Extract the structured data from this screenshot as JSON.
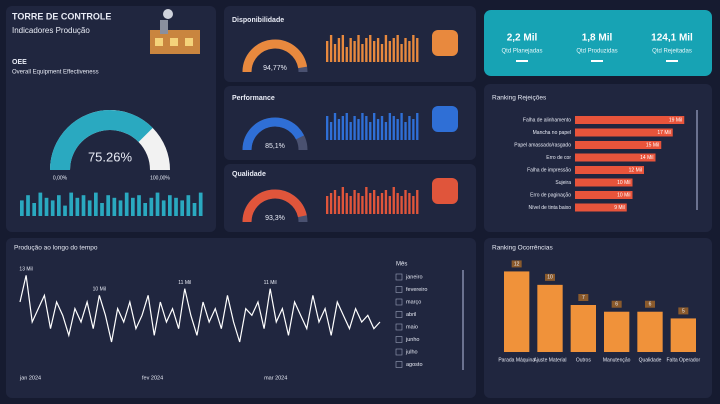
{
  "header": {
    "title": "TORRE DE CONTROLE",
    "subtitle": "Indicadores Produção"
  },
  "kpis": [
    {
      "value_label": "2,2 Mil",
      "label": "Qtd Planejadas"
    },
    {
      "value_label": "1,8 Mil",
      "label": "Qtd Produzidas"
    },
    {
      "value_label": "124,1 Mil",
      "label": "Qtd Rejeitadas"
    }
  ],
  "gauges": [
    {
      "title": "OEE",
      "subtitle": "Overall Equipment Effectiveness",
      "value": 75.26,
      "value_label": "75.26%",
      "lim": [
        0,
        100
      ],
      "min_label": "0,00%",
      "max_label": "100,00%",
      "color": "#2aa9c0",
      "track": "#f2f2f2",
      "spark": [
        6,
        8,
        5,
        9,
        7,
        6,
        8,
        4,
        9,
        7,
        8,
        6,
        9,
        5,
        8,
        7,
        6,
        9,
        7,
        8,
        5,
        7,
        9,
        6,
        8,
        7,
        6,
        8,
        5,
        9
      ],
      "spark_lim": [
        0,
        10
      ]
    },
    {
      "title": "Disponibilidade",
      "value": 94.77,
      "value_label": "94,77%",
      "lim": [
        0,
        100
      ],
      "color": "#e8893e",
      "track": "#4a5170",
      "spark": [
        7,
        9,
        6,
        8,
        9,
        5,
        8,
        7,
        9,
        6,
        8,
        9,
        7,
        8,
        6,
        9,
        7,
        8,
        9,
        6,
        8,
        7,
        9,
        8
      ],
      "spark_lim": [
        0,
        10
      ]
    },
    {
      "title": "Performance",
      "value": 85.1,
      "value_label": "85,1%",
      "lim": [
        0,
        100
      ],
      "color": "#2f6fd6",
      "track": "#4a5170",
      "spark": [
        8,
        6,
        9,
        7,
        8,
        9,
        6,
        8,
        7,
        9,
        8,
        6,
        9,
        7,
        8,
        6,
        9,
        8,
        7,
        9,
        6,
        8,
        7,
        9
      ],
      "spark_lim": [
        0,
        10
      ]
    },
    {
      "title": "Qualidade",
      "value": 93.3,
      "value_label": "93,3%",
      "lim": [
        0,
        100
      ],
      "color": "#e0553b",
      "track": "#4a5170",
      "spark": [
        6,
        7,
        8,
        6,
        9,
        7,
        6,
        8,
        7,
        6,
        9,
        7,
        8,
        6,
        7,
        8,
        6,
        9,
        7,
        6,
        8,
        7,
        6,
        8
      ],
      "spark_lim": [
        0,
        10
      ]
    }
  ],
  "slicer": {
    "title": "Mês",
    "items": [
      "janeiro",
      "fevereiro",
      "março",
      "abril",
      "maio",
      "junho",
      "julho",
      "agosto"
    ]
  },
  "chart_data": [
    {
      "type": "line",
      "title": "Produção ao longo do tempo",
      "color": "#ffffff",
      "ylim": [
        0,
        15
      ],
      "categories": [
        "jan 2024",
        null,
        null,
        null,
        null,
        null,
        null,
        null,
        null,
        null,
        null,
        null,
        null,
        null,
        null,
        null,
        null,
        null,
        null,
        null,
        "fev 2024",
        null,
        null,
        null,
        null,
        null,
        null,
        null,
        null,
        null,
        null,
        null,
        null,
        null,
        null,
        null,
        null,
        null,
        null,
        null,
        "mar 2024",
        null,
        null,
        null,
        null,
        null,
        null,
        null,
        null,
        null,
        null,
        null,
        null,
        null,
        null,
        null,
        null,
        null,
        null,
        null
      ],
      "values": [
        9,
        13,
        6,
        8,
        10,
        5,
        9,
        7,
        4,
        8,
        6,
        9,
        5,
        10,
        7,
        3,
        8,
        6,
        9,
        5,
        7,
        10,
        4,
        9,
        6,
        8,
        5,
        11,
        7,
        4,
        9,
        6,
        8,
        5,
        10,
        6,
        3,
        8,
        7,
        9,
        5,
        11,
        6,
        8,
        4,
        9,
        7,
        5,
        10,
        6,
        8,
        4,
        9,
        7,
        5,
        8,
        6,
        7,
        5,
        6
      ],
      "value_labels": [
        null,
        "13 Mil",
        null,
        null,
        null,
        null,
        null,
        null,
        null,
        null,
        null,
        null,
        null,
        "10 Mil",
        null,
        null,
        null,
        null,
        null,
        null,
        null,
        null,
        null,
        null,
        null,
        null,
        null,
        "11 Mil",
        null,
        null,
        null,
        null,
        null,
        null,
        null,
        null,
        null,
        null,
        null,
        null,
        null,
        "11 Mil",
        null,
        null,
        null,
        null,
        null,
        null,
        null,
        null,
        null,
        null,
        null,
        null,
        null,
        null,
        null,
        null,
        null,
        null
      ]
    },
    {
      "type": "hbar",
      "title": "Ranking Rejeições",
      "color": "#e8543b",
      "xlim": [
        0,
        20
      ],
      "categories": [
        "Falha de alinhamento",
        "Mancha no papel",
        "Papel amassado/rasgado",
        "Erro de cor",
        "Falha de impressão",
        "Sujeira",
        "Erro de paginação",
        "Nível de tinta baixo"
      ],
      "values": [
        19,
        17,
        15,
        14,
        12,
        10,
        10,
        9
      ],
      "value_labels": [
        "19 Mil",
        "17 Mil",
        "15 Mil",
        "14 Mil",
        "12 Mil",
        "10 Mil",
        "10 Mil",
        "9 Mil"
      ]
    },
    {
      "type": "bar",
      "title": "Ranking Ocorrências",
      "color": "#f0923a",
      "ylim": [
        0,
        14
      ],
      "categories": [
        "Parada Máquina",
        "Ajuste Material",
        "Outros",
        "Manutenção",
        "Qualidade",
        "Falta Operador"
      ],
      "values": [
        12,
        10,
        7,
        6,
        6,
        5
      ]
    }
  ]
}
